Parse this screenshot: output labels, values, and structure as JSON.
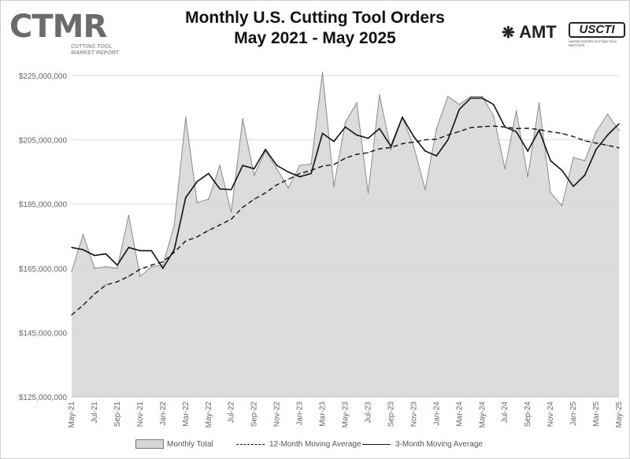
{
  "header": {
    "title_line1": "Monthly U.S. Cutting Tool Orders",
    "title_line2": "May 2021 - May 2025"
  },
  "logos": {
    "ctmr_text": "CTMR",
    "ctmr_sub": "CUTTING TOOL MARKET REPORT",
    "amt_text": "AMT",
    "usc_text": "USCTI",
    "usc_tag": "UNITED STATES CUTTING TOOL INSTITUTE"
  },
  "legend": {
    "monthly": "Monthly Total",
    "ma12": "12-Month Moving Average",
    "ma3": "3-Month Moving Average"
  },
  "chart_data": {
    "type": "area",
    "title": "Monthly U.S. Cutting Tool Orders",
    "subtitle": "May 2021 - May 2025",
    "xlabel": "",
    "ylabel": "",
    "ylim": [
      125000000,
      225000000
    ],
    "yticks": [
      "$125,000,000",
      "$145,000,000",
      "$165,000,000",
      "$185,000,000",
      "$205,000,000",
      "$225,000,000"
    ],
    "grid": true,
    "legend_position": "bottom",
    "x": [
      "May-21",
      "Jun-21",
      "Jul-21",
      "Aug-21",
      "Sep-21",
      "Oct-21",
      "Nov-21",
      "Dec-21",
      "Jan-22",
      "Feb-22",
      "Mar-22",
      "Apr-22",
      "May-22",
      "Jun-22",
      "Jul-22",
      "Aug-22",
      "Sep-22",
      "Oct-22",
      "Nov-22",
      "Dec-22",
      "Jan-23",
      "Feb-23",
      "Mar-23",
      "Apr-23",
      "May-23",
      "Jun-23",
      "Jul-23",
      "Aug-23",
      "Sep-23",
      "Oct-23",
      "Nov-23",
      "Dec-23",
      "Jan-24",
      "Feb-24",
      "Mar-24",
      "Apr-24",
      "May-24",
      "Jun-24",
      "Jul-24",
      "Aug-24",
      "Sep-24",
      "Oct-24",
      "Nov-24",
      "Dec-24",
      "Jan-25",
      "Feb-25",
      "Mar-25",
      "Apr-25",
      "May-25"
    ],
    "xtick_labels": [
      "May-21",
      "Jul-21",
      "Sep-21",
      "Nov-21",
      "Jan-22",
      "Mar-22",
      "May-22",
      "Jul-22",
      "Sep-22",
      "Nov-22",
      "Jan-23",
      "Mar-23",
      "May-23",
      "Jul-23",
      "Sep-23",
      "Nov-23",
      "Jan-24",
      "Mar-24",
      "May-24",
      "Jul-24",
      "Sep-24",
      "Nov-24",
      "Jan-25",
      "Mar-25",
      "May-25"
    ],
    "series": [
      {
        "name": "Monthly Total",
        "style": "area",
        "values": [
          164000000,
          175500000,
          165000000,
          165500000,
          165000000,
          181500000,
          162500000,
          165500000,
          166000000,
          178500000,
          212000000,
          185500000,
          186500000,
          197000000,
          182500000,
          211500000,
          194000000,
          201500000,
          196000000,
          190000000,
          197000000,
          197500000,
          226000000,
          190500000,
          210500000,
          216500000,
          188500000,
          219000000,
          202000000,
          212000000,
          203000000,
          189500000,
          208500000,
          218500000,
          216000000,
          218500000,
          218500000,
          212500000,
          196000000,
          214000000,
          193500000,
          216500000,
          188500000,
          184500000,
          199500000,
          198500000,
          207500000,
          213000000,
          208000000
        ]
      },
      {
        "name": "12-Month Moving Average",
        "style": "dashed",
        "values": [
          150500000,
          153500000,
          157000000,
          159800000,
          160800000,
          162500000,
          164700000,
          166000000,
          167000000,
          170000000,
          173500000,
          174800000,
          176800000,
          178500000,
          180300000,
          184000000,
          186500000,
          188500000,
          191000000,
          192700000,
          194500000,
          195500000,
          196800000,
          197300000,
          199300000,
          200500000,
          201000000,
          202200000,
          202600000,
          203800000,
          204300000,
          205000000,
          205200000,
          206500000,
          207600000,
          208800000,
          209100000,
          209300000,
          209000000,
          208500000,
          208600000,
          208200000,
          207500000,
          207000000,
          206000000,
          204700000,
          204000000,
          203300000,
          202500000
        ]
      },
      {
        "name": "3-Month Moving Average",
        "style": "solid",
        "values": [
          171500000,
          170800000,
          169000000,
          169500000,
          166000000,
          171500000,
          170500000,
          170500000,
          165000000,
          170800000,
          187000000,
          192000000,
          194500000,
          189700000,
          189500000,
          197000000,
          196000000,
          202000000,
          197000000,
          195000000,
          193500000,
          194500000,
          207000000,
          204500000,
          209000000,
          206500000,
          205500000,
          208500000,
          203000000,
          212000000,
          206000000,
          201500000,
          200000000,
          205000000,
          214500000,
          218000000,
          218000000,
          216000000,
          209000000,
          207500000,
          201500000,
          208000000,
          198500000,
          195500000,
          190500000,
          194000000,
          202000000,
          206500000,
          210000000
        ]
      }
    ]
  }
}
